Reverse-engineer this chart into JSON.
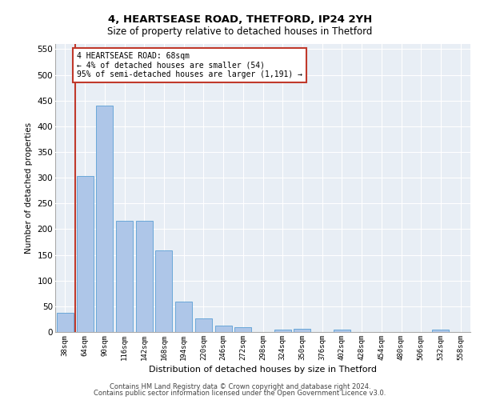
{
  "title_line1": "4, HEARTSEASE ROAD, THETFORD, IP24 2YH",
  "title_line2": "Size of property relative to detached houses in Thetford",
  "xlabel": "Distribution of detached houses by size in Thetford",
  "ylabel": "Number of detached properties",
  "categories": [
    "38sqm",
    "64sqm",
    "90sqm",
    "116sqm",
    "142sqm",
    "168sqm",
    "194sqm",
    "220sqm",
    "246sqm",
    "272sqm",
    "298sqm",
    "324sqm",
    "350sqm",
    "376sqm",
    "402sqm",
    "428sqm",
    "454sqm",
    "480sqm",
    "506sqm",
    "532sqm",
    "558sqm"
  ],
  "values": [
    37,
    303,
    441,
    216,
    216,
    158,
    59,
    27,
    13,
    9,
    0,
    5,
    6,
    0,
    5,
    0,
    0,
    0,
    0,
    5,
    0
  ],
  "bar_color": "#aec6e8",
  "bar_edge_color": "#5a9fd4",
  "vline_x": 0.5,
  "vline_color": "#c0392b",
  "annotation_text": "4 HEARTSEASE ROAD: 68sqm\n← 4% of detached houses are smaller (54)\n95% of semi-detached houses are larger (1,191) →",
  "annotation_box_color": "#c0392b",
  "ylim": [
    0,
    560
  ],
  "yticks": [
    0,
    50,
    100,
    150,
    200,
    250,
    300,
    350,
    400,
    450,
    500,
    550
  ],
  "background_color": "#e8eef5",
  "footer_line1": "Contains HM Land Registry data © Crown copyright and database right 2024.",
  "footer_line2": "Contains public sector information licensed under the Open Government Licence v3.0."
}
